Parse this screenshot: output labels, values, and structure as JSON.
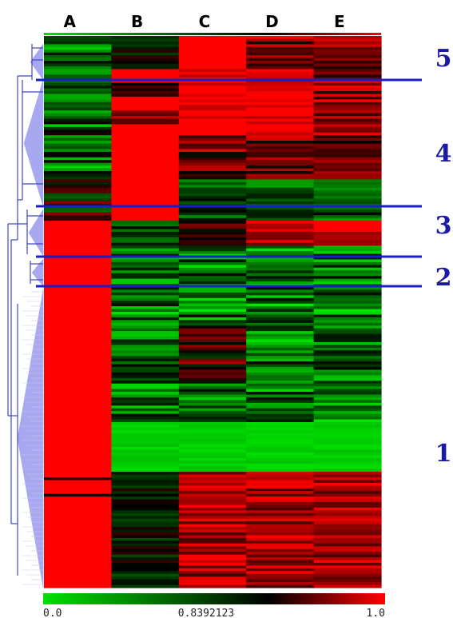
{
  "chart_data": {
    "type": "heatmap",
    "title": "",
    "columns": [
      "A",
      "B",
      "C",
      "D",
      "E"
    ],
    "rows_approx": 200,
    "clusters": [
      {
        "label": "5",
        "rows": [
          0,
          12
        ],
        "values": {
          "A": "0.0-0.6 (mostly green)",
          "B": "0.3-0.6 (dark)",
          "C": "1.0 (red block)",
          "D": "0.5-1.0",
          "E": "0.6-1.0"
        }
      },
      {
        "label": "4",
        "rows": [
          12,
          52
        ],
        "values": {
          "A": "0.0-0.6 (green/dark)",
          "B": "1.0 (red block)",
          "C": "0.6-1.0",
          "D": "0.7-1.0",
          "E": "0.6-1.0"
        }
      },
      {
        "label": "3",
        "rows": [
          52,
          67
        ],
        "values": {
          "A": "0.3-0.8",
          "B": "1.0 (red block)",
          "C": "0.1-0.5",
          "D": "0.1-0.5",
          "E": "0.1-0.5"
        }
      },
      {
        "label": "2",
        "rows": [
          67,
          76
        ],
        "values": {
          "A": "1.0",
          "B": "0.2-0.6",
          "C": "0.5-0.8",
          "D": "0.7-1.0",
          "E": "0.8-1.0"
        }
      },
      {
        "label": "1",
        "rows": [
          76,
          200
        ],
        "values": {
          "A": "1.0 (red block)",
          "B": "0.0-0.6",
          "C": "0.0-0.6, red rows near bottom",
          "D": "0.0-0.6, red rows near bottom",
          "E": "0.0-0.6, red rows near bottom"
        }
      }
    ],
    "colorbar": {
      "min": 0.0,
      "mid": 0.8392123,
      "max": 1.0,
      "tick_labels": [
        "0.0",
        "0.8392123",
        "1.0"
      ],
      "colors": [
        "#00e000",
        "#000000",
        "#ff0000"
      ]
    },
    "dendrogram": {
      "side": "left",
      "color": "#3f44c8",
      "fill": "#a8a8f0"
    },
    "cluster_separator_color": "#1b1ec8",
    "legend_position": "bottom"
  }
}
